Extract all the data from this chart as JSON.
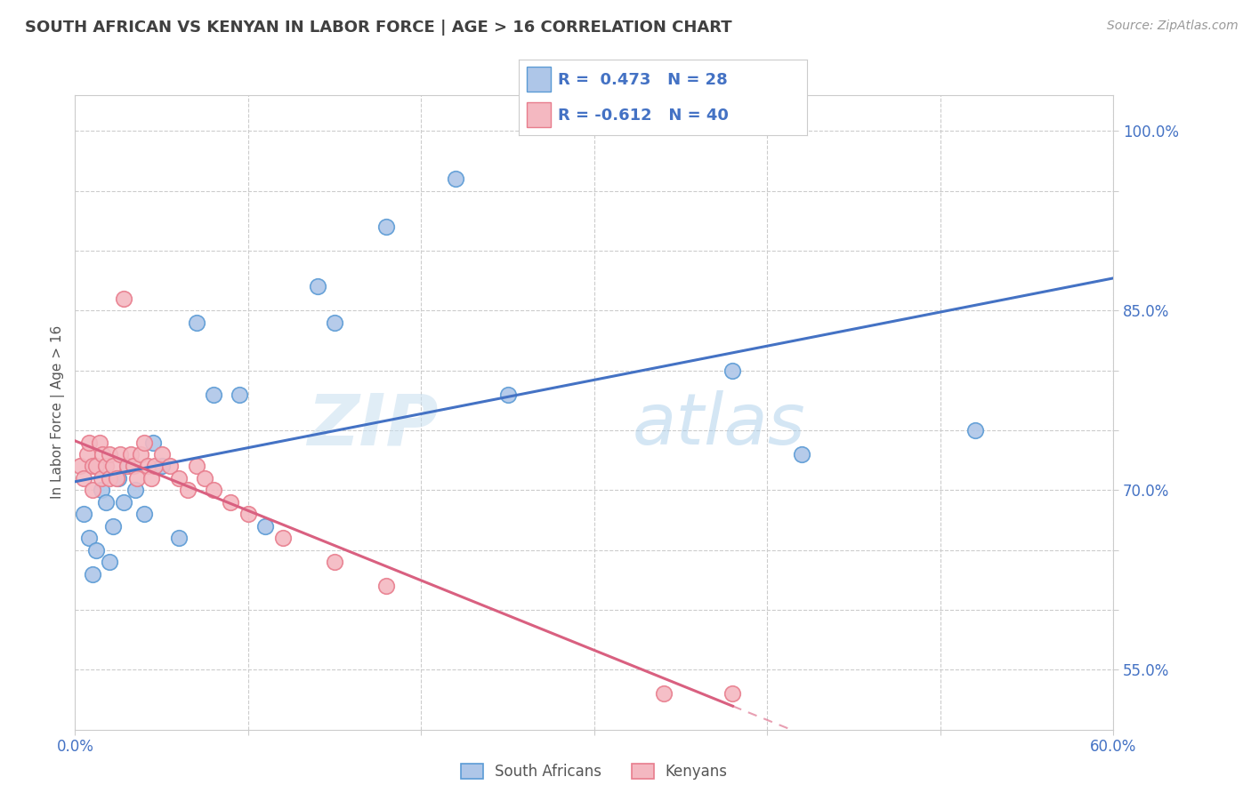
{
  "title": "SOUTH AFRICAN VS KENYAN IN LABOR FORCE | AGE > 16 CORRELATION CHART",
  "source": "Source: ZipAtlas.com",
  "ylabel": "In Labor Force | Age > 16",
  "xlim": [
    0.0,
    0.6
  ],
  "ylim": [
    0.5,
    1.03
  ],
  "sa_color": "#aec6e8",
  "sa_edge": "#5b9bd5",
  "ken_color": "#f4b8c1",
  "ken_edge": "#e87d8d",
  "sa_line_color": "#4472c4",
  "ken_line_color": "#d96080",
  "watermark_zip": "ZIP",
  "watermark_atlas": "atlas",
  "R_sa": 0.473,
  "N_sa": 28,
  "R_ken": -0.612,
  "N_ken": 40,
  "background_color": "#ffffff",
  "grid_color": "#cccccc",
  "south_africans_x": [
    0.005,
    0.008,
    0.01,
    0.012,
    0.015,
    0.018,
    0.02,
    0.022,
    0.025,
    0.028,
    0.03,
    0.035,
    0.04,
    0.045,
    0.05,
    0.06,
    0.07,
    0.08,
    0.095,
    0.11,
    0.14,
    0.15,
    0.18,
    0.22,
    0.25,
    0.38,
    0.42,
    0.52
  ],
  "south_africans_y": [
    0.68,
    0.66,
    0.63,
    0.65,
    0.7,
    0.69,
    0.64,
    0.67,
    0.71,
    0.69,
    0.72,
    0.7,
    0.68,
    0.74,
    0.72,
    0.66,
    0.84,
    0.78,
    0.78,
    0.67,
    0.87,
    0.84,
    0.92,
    0.96,
    0.78,
    0.8,
    0.73,
    0.75
  ],
  "kenyans_x": [
    0.003,
    0.005,
    0.007,
    0.008,
    0.01,
    0.01,
    0.012,
    0.014,
    0.015,
    0.016,
    0.018,
    0.02,
    0.02,
    0.022,
    0.024,
    0.026,
    0.028,
    0.03,
    0.032,
    0.034,
    0.036,
    0.038,
    0.04,
    0.042,
    0.044,
    0.046,
    0.05,
    0.055,
    0.06,
    0.065,
    0.07,
    0.075,
    0.08,
    0.09,
    0.1,
    0.12,
    0.15,
    0.18,
    0.34,
    0.38
  ],
  "kenyans_y": [
    0.72,
    0.71,
    0.73,
    0.74,
    0.7,
    0.72,
    0.72,
    0.74,
    0.71,
    0.73,
    0.72,
    0.71,
    0.73,
    0.72,
    0.71,
    0.73,
    0.86,
    0.72,
    0.73,
    0.72,
    0.71,
    0.73,
    0.74,
    0.72,
    0.71,
    0.72,
    0.73,
    0.72,
    0.71,
    0.7,
    0.72,
    0.71,
    0.7,
    0.69,
    0.68,
    0.66,
    0.64,
    0.62,
    0.53,
    0.53
  ]
}
